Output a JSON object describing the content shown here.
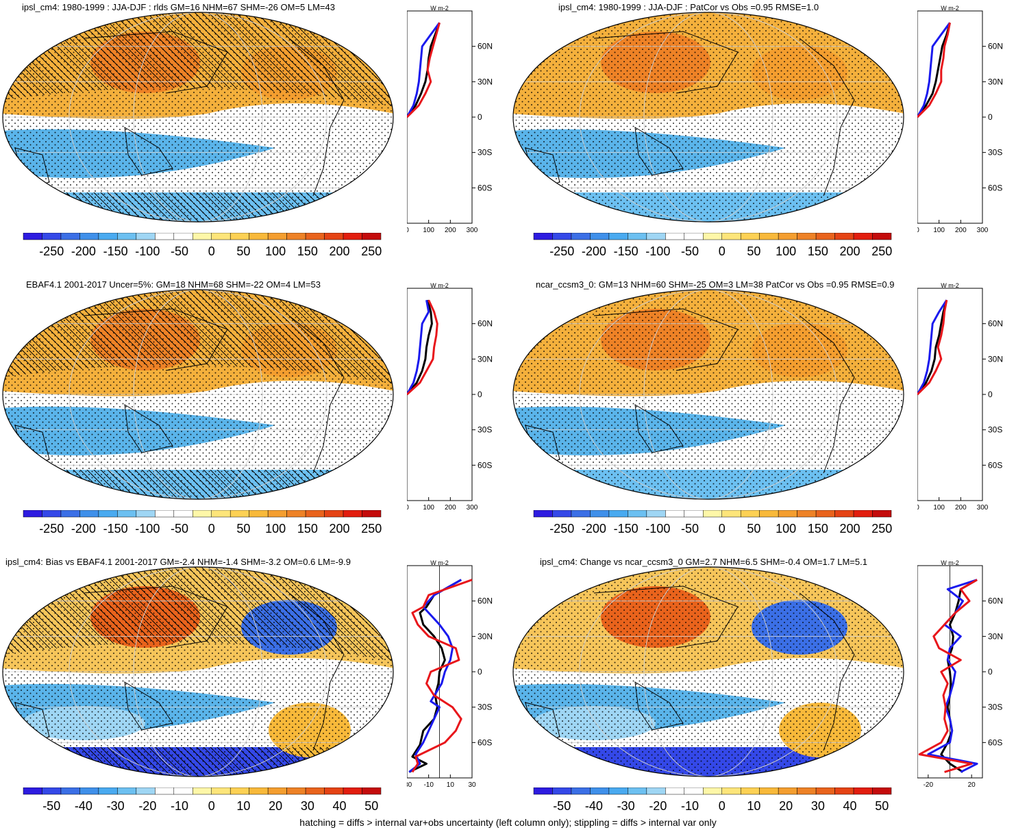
{
  "figure": {
    "footer": "hatching = diffs > internal var+obs uncertainty (left column only); stippling = diffs > internal var only",
    "units_label": "W m",
    "units_exp": "-2",
    "lat_labels": [
      "60N",
      "30N",
      "0",
      "30S",
      "60S"
    ],
    "colors": {
      "red": "#e8161b",
      "blue": "#1a1aee",
      "black": "#000000",
      "ocean_white": "#ffffff",
      "warm": "#f4b03c",
      "cool": "#5ab4ea"
    }
  },
  "colorbars": {
    "abs": {
      "labels": [
        "-250",
        "-200",
        "-150",
        "-100",
        "-50",
        "0",
        "50",
        "100",
        "150",
        "200",
        "250"
      ],
      "colors": [
        "#2d1be0",
        "#3448e8",
        "#3b6fe6",
        "#3f90ea",
        "#49aaf0",
        "#6cc0f1",
        "#9fd6f4",
        "#ffffff",
        "#ffffff",
        "#fef7a8",
        "#fde57a",
        "#fdd154",
        "#f8b93a",
        "#f49e2f",
        "#ee8226",
        "#e9631c",
        "#e54314",
        "#e21d0e",
        "#c40b0b"
      ]
    },
    "diff": {
      "labels": [
        "-50",
        "-40",
        "-30",
        "-20",
        "-10",
        "0",
        "10",
        "20",
        "30",
        "40",
        "50"
      ],
      "colors": [
        "#2d1be0",
        "#3448e8",
        "#3b6fe6",
        "#3f90ea",
        "#49aaf0",
        "#6cc0f1",
        "#9fd6f4",
        "#ffffff",
        "#ffffff",
        "#fef7a8",
        "#fde57a",
        "#fdd154",
        "#f8b93a",
        "#f49e2f",
        "#ee8226",
        "#e9631c",
        "#e54314",
        "#e21d0e",
        "#c40b0b"
      ]
    }
  },
  "chart_data": [
    {
      "type": "map+line",
      "title": "ipsl_cm4: 1980-1999 : JJA-DJF : rlds GM=16 NHM=67 SHM=-26 OM=5 LM=43",
      "colorbar": "abs",
      "pattern": "abs",
      "hatch": true,
      "profile": {
        "xlim": [
          0,
          300
        ],
        "xticks": [
          "0",
          "100",
          "200",
          "300"
        ],
        "lat": [
          0,
          10,
          20,
          30,
          40,
          50,
          60,
          70,
          80
        ],
        "series": [
          {
            "name": "black",
            "color": "#000000",
            "values": [
              0,
              40,
              65,
              85,
              95,
              100,
              110,
              130,
              150
            ]
          },
          {
            "name": "blue",
            "color": "#1a1aee",
            "values": [
              0,
              30,
              45,
              55,
              60,
              65,
              70,
              110,
              150
            ]
          },
          {
            "name": "red",
            "color": "#e8161b",
            "values": [
              0,
              55,
              85,
              110,
              95,
              105,
              120,
              135,
              150
            ]
          }
        ]
      }
    },
    {
      "type": "map+line",
      "title": "ipsl_cm4: 1980-1999 : JJA-DJF : PatCor vs Obs =0.95 RMSE=1.0",
      "colorbar": "abs",
      "pattern": "abs",
      "hatch": false,
      "profile": {
        "xlim": [
          0,
          300
        ],
        "xticks": [
          "0",
          "100",
          "200",
          "300"
        ],
        "lat": [
          0,
          10,
          20,
          30,
          40,
          50,
          60,
          70,
          80
        ],
        "series": [
          {
            "name": "black",
            "color": "#000000",
            "values": [
              0,
              40,
              70,
              85,
              95,
              105,
              115,
              135,
              150
            ]
          },
          {
            "name": "blue",
            "color": "#1a1aee",
            "values": [
              0,
              30,
              45,
              55,
              60,
              65,
              70,
              110,
              150
            ]
          },
          {
            "name": "red",
            "color": "#e8161b",
            "values": [
              0,
              55,
              85,
              110,
              110,
              120,
              125,
              140,
              150
            ]
          }
        ]
      }
    },
    {
      "type": "map+line",
      "title": "EBAF4.1 2001-2017 Uncer=5%: GM=18 NHM=68 SHM=-22 OM=4 LM=53",
      "colorbar": "abs",
      "pattern": "abs",
      "hatch": true,
      "profile": {
        "xlim": [
          0,
          300
        ],
        "xticks": [
          "0",
          "100",
          "200",
          "300"
        ],
        "lat": [
          0,
          10,
          20,
          30,
          40,
          50,
          60,
          70,
          80
        ],
        "series": [
          {
            "name": "black",
            "color": "#000000",
            "values": [
              0,
              45,
              70,
              85,
              90,
              100,
              115,
              110,
              95
            ]
          },
          {
            "name": "blue",
            "color": "#1a1aee",
            "values": [
              0,
              30,
              45,
              55,
              60,
              65,
              70,
              100,
              90
            ]
          },
          {
            "name": "red",
            "color": "#e8161b",
            "values": [
              0,
              60,
              90,
              120,
              125,
              135,
              140,
              125,
              100
            ]
          }
        ]
      }
    },
    {
      "type": "map+line",
      "title": "ncar_ccsm3_0: GM=13 NHM=60 SHM=-25 OM=3 LM=38 PatCor vs Obs =0.95 RMSE=0.9",
      "colorbar": "abs",
      "pattern": "abs",
      "hatch": false,
      "profile": {
        "xlim": [
          0,
          300
        ],
        "xticks": [
          "0",
          "100",
          "200",
          "300"
        ],
        "lat": [
          0,
          10,
          20,
          30,
          40,
          50,
          60,
          70,
          80
        ],
        "series": [
          {
            "name": "black",
            "color": "#000000",
            "values": [
              0,
              40,
              65,
              80,
              85,
              100,
              110,
              120,
              135
            ]
          },
          {
            "name": "blue",
            "color": "#1a1aee",
            "values": [
              0,
              30,
              45,
              55,
              60,
              65,
              70,
              100,
              135
            ]
          },
          {
            "name": "red",
            "color": "#e8161b",
            "values": [
              0,
              55,
              85,
              110,
              95,
              110,
              120,
              125,
              135
            ]
          }
        ]
      }
    },
    {
      "type": "map+line",
      "title": "ipsl_cm4: Bias vs EBAF4.1 2001-2017 GM=-2.4 NHM=-1.4 SHM=-3.2 OM=0.6 LM=-9.9",
      "colorbar": "diff",
      "pattern": "diff",
      "hatch": true,
      "profile": {
        "xlim": [
          -30,
          30
        ],
        "xticks": [
          "-30",
          "-10",
          "10",
          "30"
        ],
        "lat": [
          -85,
          -75,
          -70,
          -60,
          -50,
          -40,
          -30,
          -20,
          -10,
          0,
          10,
          20,
          30,
          40,
          50,
          60,
          70,
          80
        ],
        "series": [
          {
            "name": "black",
            "color": "#000000",
            "values": [
              -28,
              -12,
              -25,
              -18,
              -15,
              -5,
              -2,
              -4,
              -1,
              0,
              5,
              2,
              -5,
              -15,
              -18,
              -12,
              -5,
              20
            ],
            "lat": [
              -85,
              -78,
              -72,
              -62,
              -50,
              -40,
              -30,
              -20,
              -10,
              0,
              10,
              20,
              30,
              40,
              50,
              55,
              65,
              78
            ]
          },
          {
            "name": "blue",
            "color": "#1a1aee",
            "values": [
              -28,
              -18,
              -22,
              -15,
              -10,
              -5,
              0,
              -8,
              2,
              5,
              10,
              12,
              8,
              0,
              -10,
              -15,
              -5,
              20
            ],
            "lat": [
              -85,
              -78,
              -70,
              -60,
              -50,
              -40,
              -30,
              -25,
              -10,
              0,
              10,
              20,
              30,
              40,
              50,
              55,
              65,
              78
            ]
          },
          {
            "name": "red",
            "color": "#e8161b",
            "values": [
              -25,
              -20,
              -22,
              5,
              15,
              20,
              12,
              -5,
              -12,
              -8,
              18,
              15,
              -10,
              -20,
              -25,
              -15,
              -10,
              30
            ],
            "lat": [
              -85,
              -78,
              -72,
              -60,
              -50,
              -40,
              -30,
              -20,
              -10,
              0,
              10,
              20,
              30,
              40,
              50,
              55,
              65,
              78
            ]
          }
        ]
      }
    },
    {
      "type": "map+line",
      "title": "ipsl_cm4: Change vs ncar_ccsm3_0 GM=2.7 NHM=6.5 SHM=-0.4 OM=1.7 LM=5.1",
      "colorbar": "diff",
      "pattern": "diff",
      "hatch": false,
      "profile": {
        "xlim": [
          -30,
          30
        ],
        "xticks": [
          "-20",
          "20"
        ],
        "lat": [
          -85,
          -75,
          -70,
          -60,
          -50,
          -40,
          -30,
          -20,
          -10,
          0,
          10,
          20,
          30,
          40,
          50,
          60,
          70,
          80
        ],
        "series": [
          {
            "name": "black",
            "color": "#000000",
            "values": [
              12,
              0,
              -8,
              -2,
              2,
              0,
              -2,
              0,
              1,
              0,
              -2,
              2,
              3,
              0,
              5,
              8,
              10,
              25
            ],
            "lat": [
              -85,
              -78,
              -70,
              -60,
              -50,
              -40,
              -30,
              -20,
              -10,
              0,
              10,
              20,
              30,
              40,
              50,
              60,
              70,
              78
            ]
          },
          {
            "name": "blue",
            "color": "#1a1aee",
            "values": [
              10,
              25,
              -20,
              0,
              2,
              0,
              -4,
              0,
              3,
              5,
              -2,
              0,
              10,
              -5,
              5,
              12,
              -2,
              25
            ],
            "lat": [
              -85,
              -78,
              -70,
              -60,
              -50,
              -40,
              -30,
              -20,
              -10,
              0,
              10,
              20,
              30,
              40,
              50,
              60,
              70,
              78
            ]
          },
          {
            "name": "red",
            "color": "#e8161b",
            "values": [
              -5,
              20,
              -28,
              -8,
              -2,
              -5,
              -4,
              -6,
              -2,
              -8,
              10,
              -10,
              -15,
              -5,
              5,
              18,
              10,
              25
            ],
            "lat": [
              -85,
              -78,
              -70,
              -60,
              -50,
              -40,
              -30,
              -20,
              -10,
              0,
              10,
              20,
              30,
              40,
              50,
              60,
              70,
              78
            ]
          }
        ]
      }
    }
  ]
}
